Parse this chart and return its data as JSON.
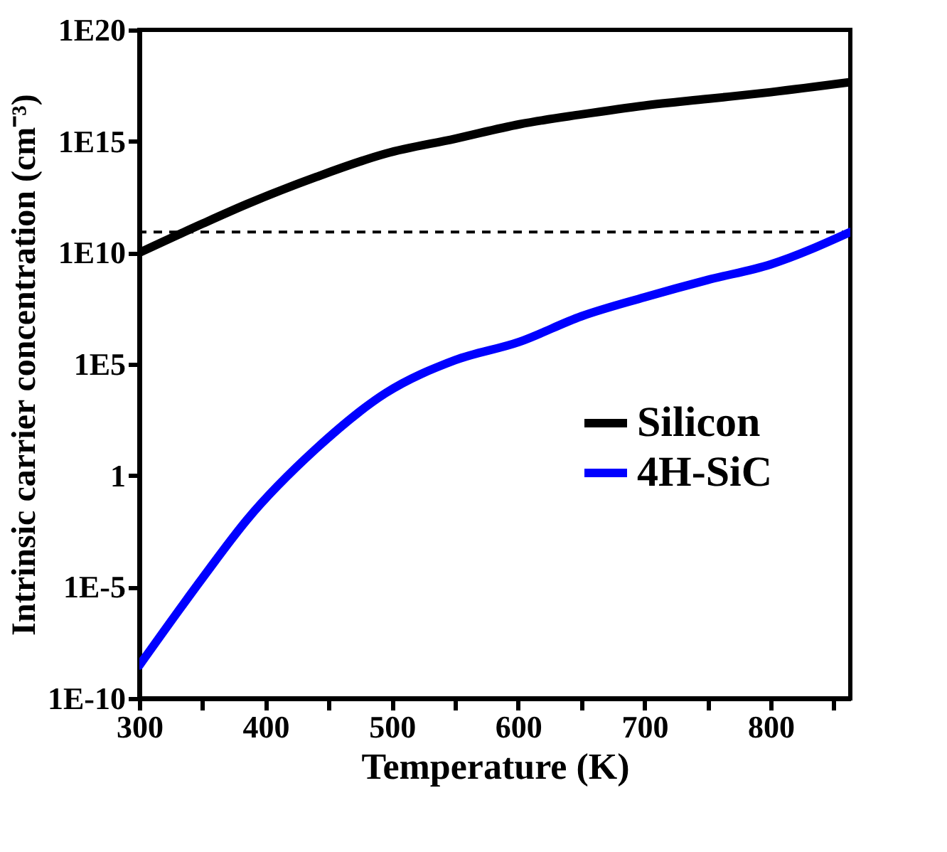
{
  "chart_data": {
    "type": "line",
    "xlabel": "Temperature (K)",
    "ylabel": "Intrinsic carrier concentration (cm⁻³)",
    "x": [
      300,
      350,
      385,
      440,
      495,
      550,
      601,
      650,
      700,
      750,
      800,
      863
    ],
    "series": [
      {
        "name": "Silicon",
        "color": "#000000",
        "values": [
          10000000000.0,
          200000000000.0,
          1500000000000.0,
          25000000000000.0,
          280000000000000.0,
          1300000000000000.0,
          5800000000000000.0,
          1.6e+16,
          4e+16,
          8e+16,
          1.6e+17,
          4.5e+17
        ]
      },
      {
        "name": "4H-SiC",
        "color": "#0000ff",
        "values": [
          3e-09,
          2.5e-05,
          0.01,
          16,
          5000.0,
          150000.0,
          1000000.0,
          14000000.0,
          100000000.0,
          600000000.0,
          3000000000.0,
          85000000000.0
        ]
      }
    ],
    "log": "y",
    "xlim": [
      300,
      863
    ],
    "ylim": [
      1e-10,
      1e+20
    ],
    "xticks": [
      300,
      {
        "value": 350,
        "label": null
      },
      400,
      {
        "value": 450,
        "label": null
      },
      500,
      {
        "value": 550,
        "label": null
      },
      600,
      {
        "value": 650,
        "label": null
      },
      700,
      {
        "value": 750,
        "label": null
      },
      800,
      {
        "value": 850,
        "label": null
      }
    ],
    "yticks": [
      {
        "value": 1e-10,
        "label": "1E-10"
      },
      {
        "value": 1e-05,
        "label": "1E-5"
      },
      1,
      {
        "value": 100000.0,
        "label": "1E5"
      },
      {
        "value": 10000000000.0,
        "label": "1E10"
      },
      {
        "value": 1000000000000000.0,
        "label": "1E15"
      },
      {
        "value": 1e+20,
        "label": "1E20"
      }
    ],
    "ref_lines": [
      {
        "axis": "y",
        "value": 85000000000.0,
        "line_style": "dashed",
        "color": "#000000"
      }
    ],
    "legend": "right",
    "grid": false,
    "line_style": "solid",
    "marker": "none"
  }
}
